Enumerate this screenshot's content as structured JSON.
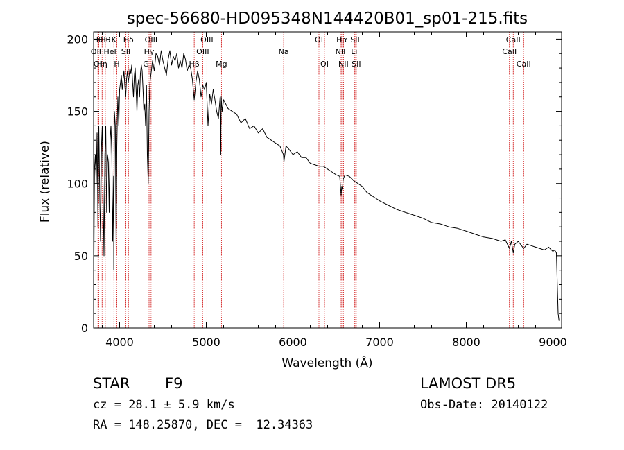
{
  "chart_data": {
    "type": "line",
    "title": "spec-56680-HD095348N144420B01_sp01-215.fits",
    "xlabel": "Wavelength (Å)",
    "ylabel": "Flux (relative)",
    "xlim": [
      3700,
      9100
    ],
    "ylim": [
      0,
      205
    ],
    "xticks": [
      4000,
      5000,
      6000,
      7000,
      8000,
      9000
    ],
    "yticks": [
      0,
      50,
      100,
      150,
      200
    ],
    "grid": false,
    "series": [
      {
        "x": [
          3700,
          3705,
          3710,
          3720,
          3730,
          3740,
          3750,
          3760,
          3770,
          3780,
          3790,
          3800,
          3810,
          3820,
          3830,
          3840,
          3850,
          3860,
          3870,
          3880,
          3890,
          3900,
          3910,
          3920,
          3930,
          3933,
          3940,
          3950,
          3960,
          3968,
          3975,
          3980,
          3990,
          4000,
          4010,
          4020,
          4030,
          4040,
          4050,
          4060,
          4070,
          4080,
          4090,
          4100,
          4110,
          4120,
          4130,
          4140,
          4150,
          4160,
          4170,
          4180,
          4190,
          4200,
          4210,
          4220,
          4230,
          4240,
          4250,
          4260,
          4270,
          4280,
          4290,
          4300,
          4310,
          4320,
          4330,
          4340,
          4350,
          4360,
          4370,
          4380,
          4400,
          4420,
          4440,
          4460,
          4480,
          4500,
          4520,
          4540,
          4560,
          4580,
          4600,
          4620,
          4640,
          4660,
          4680,
          4700,
          4720,
          4740,
          4760,
          4780,
          4800,
          4820,
          4840,
          4861,
          4880,
          4900,
          4920,
          4940,
          4960,
          4980,
          5000,
          5020,
          5040,
          5060,
          5080,
          5100,
          5120,
          5140,
          5160,
          5167,
          5172,
          5183,
          5200,
          5250,
          5300,
          5350,
          5400,
          5450,
          5500,
          5550,
          5600,
          5650,
          5700,
          5750,
          5800,
          5850,
          5890,
          5896,
          5920,
          5950,
          6000,
          6050,
          6100,
          6150,
          6200,
          6250,
          6300,
          6350,
          6400,
          6450,
          6500,
          6540,
          6556,
          6563,
          6570,
          6580,
          6600,
          6650,
          6700,
          6750,
          6800,
          6850,
          6900,
          6950,
          7000,
          7100,
          7200,
          7300,
          7400,
          7500,
          7600,
          7700,
          7800,
          7900,
          8000,
          8100,
          8200,
          8300,
          8400,
          8450,
          8498,
          8520,
          8542,
          8560,
          8600,
          8662,
          8700,
          8750,
          8800,
          8850,
          8900,
          8950,
          9000,
          9020,
          9040,
          9050,
          9060,
          9070
        ],
        "y": [
          5,
          60,
          110,
          120,
          100,
          135,
          70,
          140,
          95,
          60,
          125,
          140,
          90,
          50,
          120,
          140,
          80,
          120,
          115,
          80,
          130,
          140,
          120,
          60,
          105,
          40,
          150,
          140,
          55,
          125,
          150,
          160,
          140,
          165,
          170,
          175,
          165,
          172,
          178,
          168,
          160,
          172,
          178,
          170,
          175,
          180,
          176,
          182,
          170,
          160,
          175,
          180,
          165,
          150,
          168,
          172,
          160,
          176,
          182,
          178,
          165,
          150,
          155,
          140,
          168,
          120,
          100,
          150,
          170,
          175,
          180,
          185,
          178,
          190,
          188,
          182,
          192,
          185,
          180,
          175,
          186,
          192,
          182,
          188,
          185,
          190,
          180,
          185,
          180,
          190,
          186,
          178,
          182,
          180,
          172,
          158,
          170,
          178,
          172,
          160,
          168,
          165,
          170,
          140,
          162,
          155,
          165,
          158,
          150,
          145,
          160,
          120,
          160,
          150,
          158,
          152,
          150,
          148,
          142,
          145,
          138,
          140,
          135,
          138,
          132,
          130,
          128,
          126,
          120,
          115,
          126,
          124,
          120,
          122,
          118,
          118,
          114,
          113,
          112,
          112,
          110,
          108,
          106,
          105,
          92,
          98,
          96,
          103,
          106,
          105,
          102,
          100,
          98,
          94,
          92,
          90,
          88,
          85,
          82,
          80,
          78,
          76,
          73,
          72,
          70,
          69,
          67,
          65,
          63,
          62,
          60,
          61,
          55,
          60,
          52,
          58,
          60,
          55,
          58,
          57,
          56,
          55,
          54,
          56,
          53,
          54,
          52,
          30,
          10,
          5
        ]
      }
    ],
    "line_labels": [
      {
        "wavelength": 3750,
        "label": "Hθ",
        "row": 0
      },
      {
        "wavelength": 3727,
        "label": "OII",
        "row": 1
      },
      {
        "wavelength": 3760,
        "label": "OII",
        "row": 2
      },
      {
        "wavelength": 3798,
        "label": "Hη",
        "row": 2
      },
      {
        "wavelength": 3835,
        "label": "Hθ",
        "row": 0
      },
      {
        "wavelength": 3889,
        "label": "HeI",
        "row": 1
      },
      {
        "wavelength": 3934,
        "label": "K",
        "row": 0
      },
      {
        "wavelength": 3968,
        "label": "H",
        "row": 2
      },
      {
        "wavelength": 4072,
        "label": "SII",
        "row": 1
      },
      {
        "wavelength": 4102,
        "label": "Hδ",
        "row": 0
      },
      {
        "wavelength": 4304,
        "label": "G",
        "row": 2
      },
      {
        "wavelength": 4340,
        "label": "Hγ",
        "row": 1
      },
      {
        "wavelength": 4363,
        "label": "OIII",
        "row": 0
      },
      {
        "wavelength": 4861,
        "label": "Hβ",
        "row": 2
      },
      {
        "wavelength": 4959,
        "label": "OIII",
        "row": 1
      },
      {
        "wavelength": 5007,
        "label": "OIII",
        "row": 0
      },
      {
        "wavelength": 5175,
        "label": "Mg",
        "row": 2
      },
      {
        "wavelength": 5893,
        "label": "Na",
        "row": 1
      },
      {
        "wavelength": 6300,
        "label": "OI",
        "row": 0
      },
      {
        "wavelength": 6364,
        "label": "OI",
        "row": 2
      },
      {
        "wavelength": 6548,
        "label": "NII",
        "row": 1
      },
      {
        "wavelength": 6563,
        "label": "Hα",
        "row": 0
      },
      {
        "wavelength": 6583,
        "label": "NII",
        "row": 2
      },
      {
        "wavelength": 6707,
        "label": "Li",
        "row": 1
      },
      {
        "wavelength": 6716,
        "label": "SII",
        "row": 0
      },
      {
        "wavelength": 6731,
        "label": "SII",
        "row": 2
      },
      {
        "wavelength": 8498,
        "label": "CaII",
        "row": 1
      },
      {
        "wavelength": 8542,
        "label": "CaII",
        "row": 0
      },
      {
        "wavelength": 8662,
        "label": "CaII",
        "row": 2
      }
    ]
  },
  "info": {
    "class_label": "STAR",
    "subclass": "F9",
    "survey": "LAMOST DR5",
    "redshift": "cz = 28.1 ± 5.9 km/s",
    "obs_date": "Obs-Date: 20140122",
    "coords": "RA = 148.25870, DEC =  12.34363"
  },
  "colors": {
    "spectrum": "#000000",
    "line_markers": "#cc0000",
    "axes": "#000000"
  }
}
